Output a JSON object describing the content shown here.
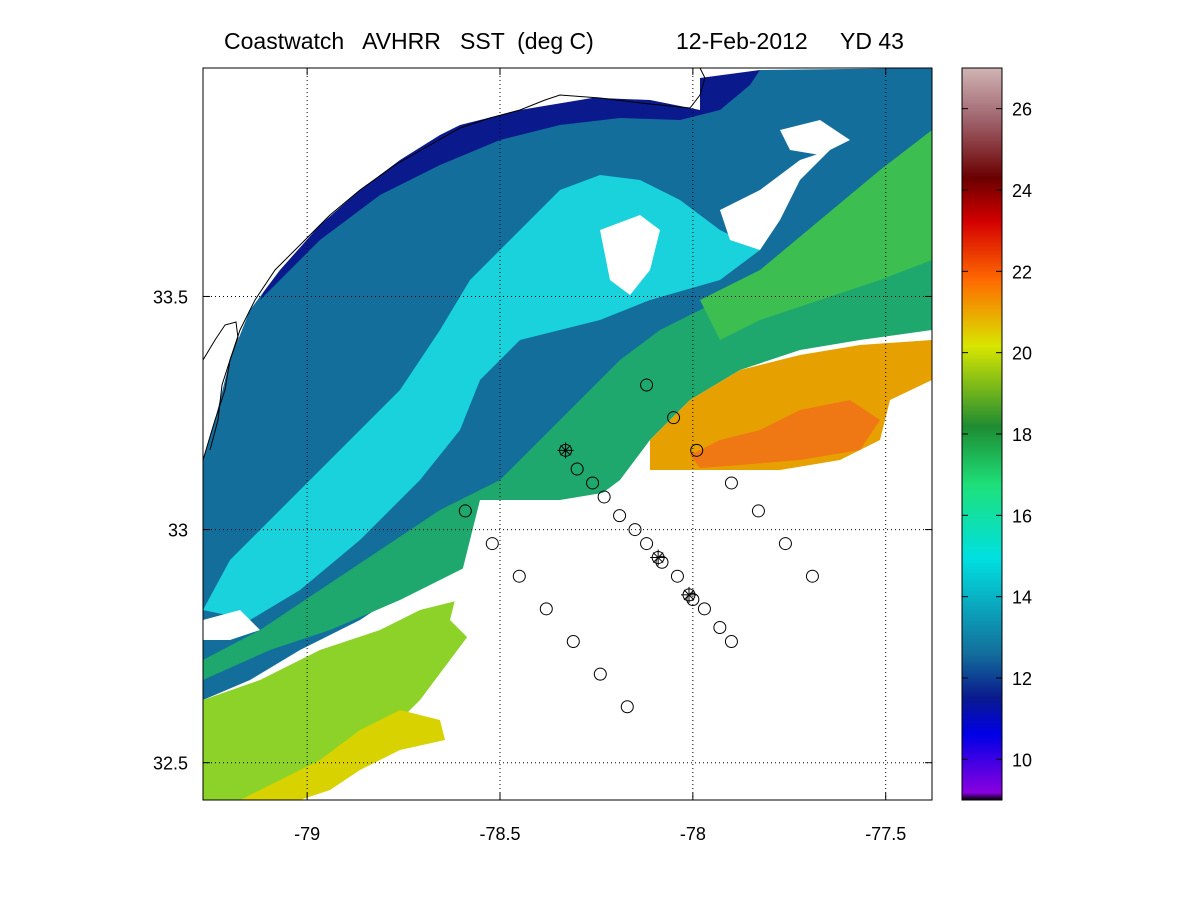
{
  "title": {
    "product": "Coastwatch   AVHRR   SST  (deg C)",
    "date": "12-Feb-2012",
    "yearday": "YD 43"
  },
  "chart_data": {
    "type": "heatmap",
    "variable": "SST",
    "units": "deg C",
    "xlim": [
      -79.27,
      -77.38
    ],
    "ylim": [
      32.42,
      33.99
    ],
    "x_ticks": [
      -79,
      -78.5,
      -78,
      -77.5
    ],
    "x_tick_labels": [
      "-79",
      "-78.5",
      "-78",
      "-77.5"
    ],
    "y_ticks": [
      32.5,
      33,
      33.5
    ],
    "y_tick_labels": [
      "32.5",
      "33",
      "33.5"
    ],
    "grid": "dotted",
    "colorbar": {
      "range": [
        9,
        27
      ],
      "ticks": [
        10,
        12,
        14,
        16,
        18,
        20,
        22,
        24,
        26
      ],
      "tick_labels": [
        "10",
        "12",
        "14",
        "16",
        "18",
        "20",
        "22",
        "24",
        "26"
      ],
      "position": "right"
    },
    "stations_circle": [
      [
        -78.12,
        33.31
      ],
      [
        -78.05,
        33.24
      ],
      [
        -77.99,
        33.17
      ],
      [
        -78.33,
        33.17
      ],
      [
        -78.3,
        33.13
      ],
      [
        -78.26,
        33.1
      ],
      [
        -78.23,
        33.07
      ],
      [
        -78.19,
        33.03
      ],
      [
        -78.15,
        33.0
      ],
      [
        -78.12,
        32.97
      ],
      [
        -78.09,
        32.94
      ],
      [
        -78.08,
        32.93
      ],
      [
        -78.04,
        32.9
      ],
      [
        -78.01,
        32.86
      ],
      [
        -78.0,
        32.85
      ],
      [
        -77.97,
        32.83
      ],
      [
        -77.93,
        32.79
      ],
      [
        -77.9,
        32.76
      ],
      [
        -78.59,
        33.04
      ],
      [
        -78.52,
        32.97
      ],
      [
        -78.45,
        32.9
      ],
      [
        -78.38,
        32.83
      ],
      [
        -78.31,
        32.76
      ],
      [
        -78.24,
        32.69
      ],
      [
        -78.17,
        32.62
      ],
      [
        -77.9,
        33.1
      ],
      [
        -77.83,
        33.04
      ],
      [
        -77.76,
        32.97
      ],
      [
        -77.69,
        32.9
      ]
    ],
    "stations_star": [
      [
        -78.33,
        33.17
      ],
      [
        -78.09,
        32.94
      ],
      [
        -78.01,
        32.86
      ]
    ]
  },
  "colors": {
    "ramp": [
      "#000000",
      "#8a00e0",
      "#0000e6",
      "#0a1a8c",
      "#136e9c",
      "#00e0e0",
      "#1ee07a",
      "#1e8c32",
      "#d8e600",
      "#ff6a00",
      "#d40000",
      "#6b0000",
      "#a0646e",
      "#d0b4b4"
    ]
  }
}
